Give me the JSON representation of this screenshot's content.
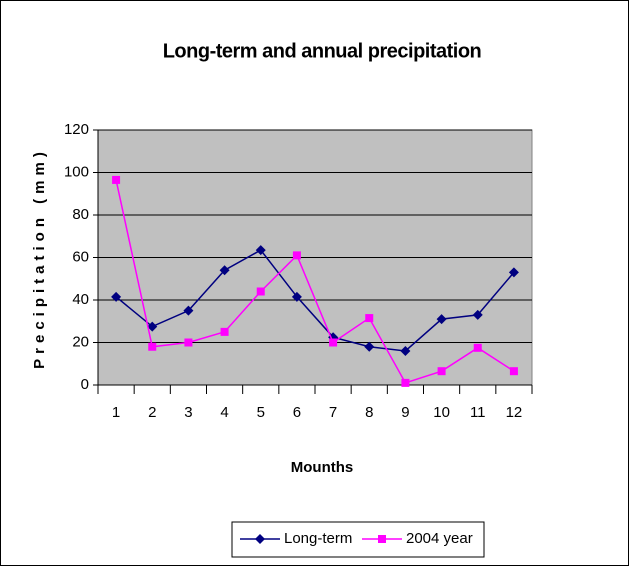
{
  "chart_data": {
    "type": "line",
    "title": "Long-term and annual precipitation",
    "x_label": "Mounths",
    "y_label": "Precipitation (mm)",
    "categories": [
      "1",
      "2",
      "3",
      "4",
      "5",
      "6",
      "7",
      "8",
      "9",
      "10",
      "11",
      "12"
    ],
    "series": [
      {
        "name": "Long-term",
        "color": "#000080",
        "marker": "diamond",
        "values": [
          41.5,
          27.5,
          35,
          54,
          63.5,
          41.5,
          22.5,
          18,
          16,
          31,
          33,
          53
        ]
      },
      {
        "name": "2004 year",
        "color": "#ff00ff",
        "marker": "square",
        "values": [
          96.5,
          18,
          20,
          25,
          44,
          61,
          20,
          31.5,
          1,
          6.5,
          17.5,
          6.5
        ]
      }
    ],
    "ylim": [
      0,
      120
    ],
    "yticks": [
      0,
      20,
      40,
      60,
      80,
      100,
      120
    ],
    "grid": true,
    "legend": "bottom"
  }
}
